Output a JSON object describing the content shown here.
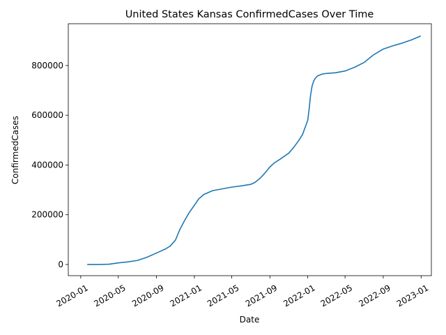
{
  "chart_data": {
    "type": "line",
    "title": "United States Kansas ConfirmedCases Over Time",
    "xlabel": "Date",
    "ylabel": "ConfirmedCases",
    "x_ticks": [
      "2020-01",
      "2020-05",
      "2020-09",
      "2021-01",
      "2021-05",
      "2021-09",
      "2022-01",
      "2022-05",
      "2022-09",
      "2023-01"
    ],
    "y_ticks": [
      "0",
      "200000",
      "400000",
      "600000",
      "800000"
    ],
    "xlim": [
      "2019-11-22",
      "2023-02-03"
    ],
    "ylim": [
      -45000,
      968000
    ],
    "grid": false,
    "series": [
      {
        "name": "",
        "color": "#1f77b4",
        "points": [
          [
            "2020-01-22",
            0
          ],
          [
            "2020-03-01",
            0
          ],
          [
            "2020-04-01",
            1200
          ],
          [
            "2020-05-01",
            6500
          ],
          [
            "2020-06-01",
            10500
          ],
          [
            "2020-07-01",
            16000
          ],
          [
            "2020-08-01",
            29000
          ],
          [
            "2020-09-01",
            46000
          ],
          [
            "2020-10-01",
            63000
          ],
          [
            "2020-10-15",
            74000
          ],
          [
            "2020-11-01",
            98000
          ],
          [
            "2020-11-15",
            140000
          ],
          [
            "2020-12-01",
            178000
          ],
          [
            "2020-12-15",
            208000
          ],
          [
            "2021-01-01",
            238000
          ],
          [
            "2021-01-15",
            264000
          ],
          [
            "2021-02-01",
            282000
          ],
          [
            "2021-03-01",
            297000
          ],
          [
            "2021-04-01",
            304000
          ],
          [
            "2021-05-01",
            311000
          ],
          [
            "2021-06-01",
            316000
          ],
          [
            "2021-07-01",
            322000
          ],
          [
            "2021-07-15",
            330000
          ],
          [
            "2021-08-01",
            347000
          ],
          [
            "2021-08-15",
            366000
          ],
          [
            "2021-09-01",
            392000
          ],
          [
            "2021-09-15",
            408000
          ],
          [
            "2021-10-01",
            421000
          ],
          [
            "2021-10-15",
            433000
          ],
          [
            "2021-11-01",
            448000
          ],
          [
            "2021-11-15",
            468000
          ],
          [
            "2021-12-01",
            495000
          ],
          [
            "2021-12-15",
            522000
          ],
          [
            "2022-01-01",
            580000
          ],
          [
            "2022-01-05",
            620000
          ],
          [
            "2022-01-10",
            680000
          ],
          [
            "2022-01-15",
            718000
          ],
          [
            "2022-01-20",
            737000
          ],
          [
            "2022-01-25",
            748000
          ],
          [
            "2022-02-01",
            758000
          ],
          [
            "2022-02-15",
            765000
          ],
          [
            "2022-03-01",
            768000
          ],
          [
            "2022-04-01",
            771000
          ],
          [
            "2022-05-01",
            778000
          ],
          [
            "2022-06-01",
            793000
          ],
          [
            "2022-07-01",
            812000
          ],
          [
            "2022-08-01",
            843000
          ],
          [
            "2022-09-01",
            866000
          ],
          [
            "2022-10-01",
            879000
          ],
          [
            "2022-11-01",
            890000
          ],
          [
            "2022-12-01",
            903000
          ],
          [
            "2022-12-31",
            919000
          ]
        ]
      }
    ]
  }
}
